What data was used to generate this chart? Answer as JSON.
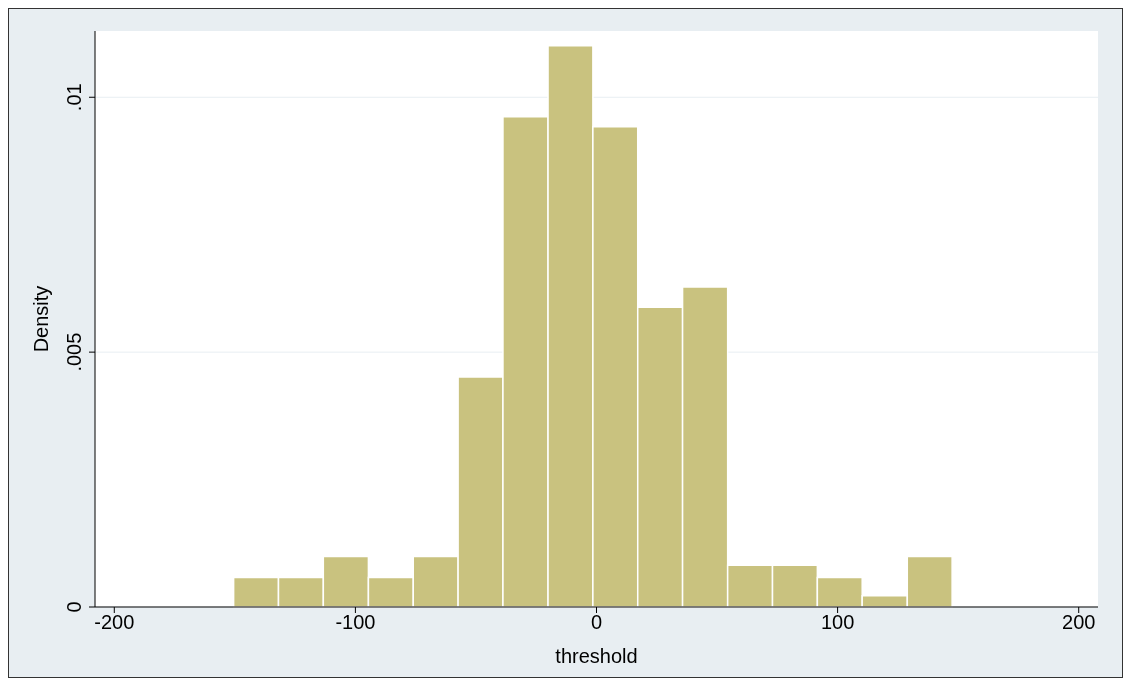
{
  "chart_data": {
    "type": "histogram",
    "xlabel": "threshold",
    "ylabel": "Density",
    "bins": [
      -150.5,
      -131.9,
      -113.3,
      -94.6,
      -76.0,
      -57.4,
      -38.8,
      -20.1,
      -1.5,
      17.1,
      35.7,
      54.4,
      73.0,
      91.6,
      110.2,
      128.9,
      147.5
    ],
    "values": [
      0.00058,
      0.00058,
      0.00099,
      0.00058,
      0.00099,
      0.00451,
      0.00962,
      0.01101,
      0.00942,
      0.00588,
      0.00628,
      0.00082,
      0.00082,
      0.00058,
      0.00022,
      0.00099
    ],
    "color": "#c9c27f",
    "xlim": [
      -208,
      208
    ],
    "xticks": [
      -200,
      -100,
      0,
      100,
      200
    ],
    "ylim": [
      0,
      0.0113
    ],
    "yticks": [
      {
        "value": 0,
        "label": "0"
      },
      {
        "value": 0.005,
        "label": ".005"
      },
      {
        "value": 0.01,
        "label": ".01"
      }
    ],
    "grid": "y"
  }
}
